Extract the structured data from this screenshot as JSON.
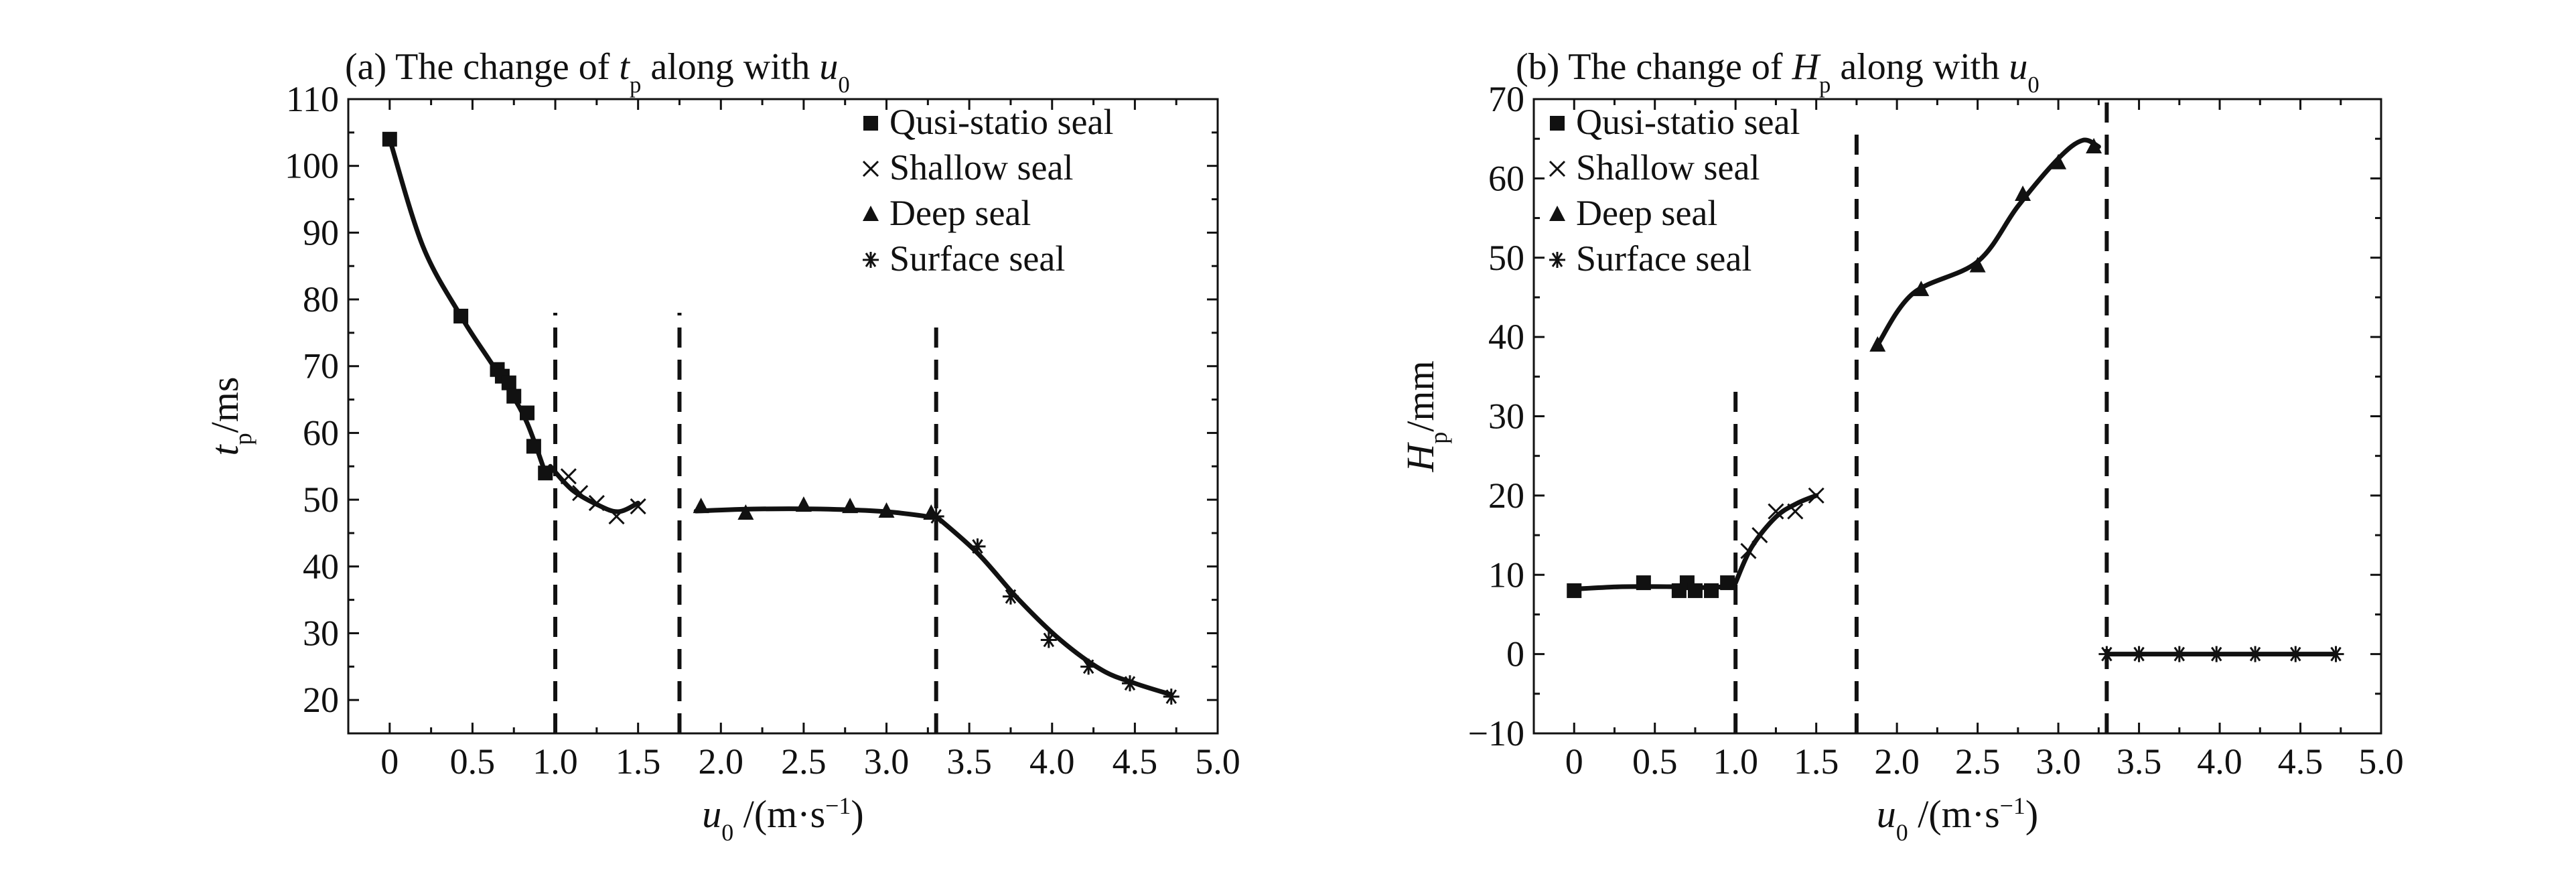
{
  "chart_data": [
    {
      "type": "scatter",
      "title": "(a) The change of t_p along with u_0",
      "title_parts": {
        "prefix": "(a) The change of ",
        "sym": "t",
        "sub": "p",
        "mid": " along with ",
        "sym2": "u",
        "sub2": "0"
      },
      "xlabel": "u_0 /(m·s^-1)",
      "xlabel_parts": {
        "sym": "u",
        "sub": "0",
        "unit": " /(m·s",
        "sup": "−1",
        "close": ")"
      },
      "ylabel": "t_p/ms",
      "ylabel_parts": {
        "sym": "t",
        "sub": "p",
        "unit": "/ms"
      },
      "xlim": [
        -0.25,
        5.0
      ],
      "ylim": [
        15,
        110
      ],
      "xticks": [
        "0",
        "0.5",
        "1.0",
        "1.5",
        "2.0",
        "2.5",
        "3.0",
        "3.5",
        "4.0",
        "4.5",
        "5.0"
      ],
      "yticks": [
        "20",
        "30",
        "40",
        "50",
        "60",
        "70",
        "80",
        "90",
        "100",
        "110"
      ],
      "legend_position": "top-right",
      "dashed_lines_x": [
        {
          "x": 1.0,
          "y_top": 78
        },
        {
          "x": 1.75,
          "y_top": 78
        },
        {
          "x": 3.3,
          "y_top": 77
        }
      ],
      "series": [
        {
          "name": "Qusi-statio seal",
          "marker": "square",
          "x": [
            0,
            0.43,
            0.65,
            0.68,
            0.72,
            0.75,
            0.83,
            0.87,
            0.94
          ],
          "y": [
            104,
            77.5,
            69.5,
            68.5,
            67.5,
            65.5,
            63,
            58,
            54
          ],
          "curve_x": [
            0,
            0.2,
            0.43,
            0.6,
            0.72,
            0.83,
            0.94
          ],
          "curve_y": [
            104,
            88,
            77.5,
            71,
            66.5,
            61.5,
            54
          ]
        },
        {
          "name": "Shallow seal",
          "marker": "x",
          "x": [
            1.08,
            1.15,
            1.25,
            1.37,
            1.5
          ],
          "y": [
            53.5,
            51,
            49.5,
            47.5,
            49
          ],
          "curve_x": [
            0.97,
            1.1,
            1.25,
            1.38,
            1.5
          ],
          "curve_y": [
            55,
            51.5,
            49.3,
            48.2,
            49.5
          ]
        },
        {
          "name": "Deep seal",
          "marker": "triangle",
          "x": [
            1.88,
            2.15,
            2.5,
            2.78,
            3.0,
            3.27
          ],
          "y": [
            49,
            48,
            49.2,
            49,
            48.3,
            48
          ],
          "curve_x": [
            1.85,
            2.2,
            2.6,
            3.0,
            3.3
          ],
          "curve_y": [
            48.3,
            48.6,
            48.6,
            48.2,
            47.3
          ]
        },
        {
          "name": "Surface seal",
          "marker": "asterisk",
          "x": [
            3.3,
            3.55,
            3.75,
            3.98,
            4.22,
            4.47,
            4.72
          ],
          "y": [
            47.5,
            43,
            35.5,
            29,
            25,
            22.5,
            20.5
          ],
          "curve_x": [
            3.3,
            3.55,
            3.8,
            4.05,
            4.3,
            4.5,
            4.72
          ],
          "curve_y": [
            47.5,
            42,
            35,
            29,
            24.5,
            22.5,
            20.8
          ]
        }
      ]
    },
    {
      "type": "scatter",
      "title": "(b) The change of H_p along with u_0",
      "title_parts": {
        "prefix": "(b) The change of ",
        "sym": "H",
        "sub": "p",
        "mid": " along with ",
        "sym2": "u",
        "sub2": "0"
      },
      "xlabel": "u_0 /(m·s^-1)",
      "xlabel_parts": {
        "sym": "u",
        "sub": "0",
        "unit": " /(m·s",
        "sup": "−1",
        "close": ")"
      },
      "ylabel": "H_p/mm",
      "ylabel_parts": {
        "sym": "H",
        "sub": "p",
        "unit": "/mm"
      },
      "xlim": [
        -0.25,
        5.0
      ],
      "ylim": [
        -10,
        70
      ],
      "xticks": [
        "0",
        "0.5",
        "1.0",
        "1.5",
        "2.0",
        "2.5",
        "3.0",
        "3.5",
        "4.0",
        "4.5",
        "5.0"
      ],
      "yticks": [
        "−10",
        "0",
        "10",
        "20",
        "30",
        "40",
        "50",
        "60",
        "70"
      ],
      "legend_position": "top-left",
      "dashed_lines_x": [
        {
          "x": 1.0,
          "y_top": 34
        },
        {
          "x": 1.75,
          "y_top": 67
        },
        {
          "x": 3.3,
          "y_top": 70
        }
      ],
      "series": [
        {
          "name": "Qusi-statio seal",
          "marker": "square",
          "x": [
            0,
            0.43,
            0.65,
            0.7,
            0.75,
            0.85,
            0.95
          ],
          "y": [
            8,
            9,
            8,
            9,
            8,
            8,
            9
          ],
          "curve_x": [
            0,
            0.3,
            0.6,
            0.8,
            0.92,
            1.0
          ],
          "curve_y": [
            8.2,
            8.5,
            8.5,
            8.4,
            8.5,
            9
          ]
        },
        {
          "name": "Shallow seal",
          "marker": "x",
          "x": [
            1.08,
            1.15,
            1.25,
            1.37,
            1.5
          ],
          "y": [
            13,
            15,
            18,
            18,
            20
          ],
          "curve_x": [
            1.0,
            1.1,
            1.25,
            1.38,
            1.5
          ],
          "curve_y": [
            9,
            13.5,
            17.3,
            19,
            20
          ]
        },
        {
          "name": "Deep seal",
          "marker": "triangle",
          "x": [
            1.88,
            2.15,
            2.5,
            2.78,
            3.0,
            3.22
          ],
          "y": [
            39,
            46,
            49,
            58,
            62,
            64
          ],
          "curve_x": [
            1.88,
            2.1,
            2.5,
            2.75,
            3.0,
            3.15,
            3.25
          ],
          "curve_y": [
            39,
            45.5,
            49.5,
            56.5,
            62.5,
            64.8,
            64
          ]
        },
        {
          "name": "Surface seal",
          "marker": "asterisk",
          "x": [
            3.3,
            3.5,
            3.75,
            3.98,
            4.22,
            4.47,
            4.72
          ],
          "y": [
            0,
            0,
            0,
            0,
            0,
            0,
            0
          ],
          "curve_x": [
            3.3,
            4.72
          ],
          "curve_y": [
            0,
            0
          ]
        }
      ]
    }
  ]
}
